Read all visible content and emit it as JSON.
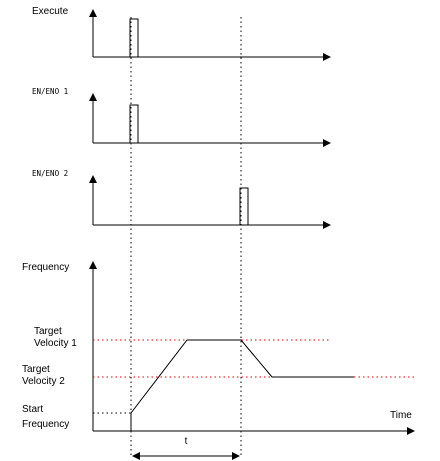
{
  "signals": {
    "execute_label": "Execute",
    "enable1_label": "EN/ENO 1",
    "enable2_label": "EN/ENO 2"
  },
  "profile": {
    "y_axis_label": "Frequency",
    "x_axis_label": "Time",
    "target_velocity_1": [
      "Target",
      "Velocity 1"
    ],
    "target_velocity_2": [
      "Target",
      "Velocity 2"
    ],
    "start_frequency": [
      "Start",
      "Frequency"
    ],
    "duration_label": "t"
  },
  "colors": {
    "guide_red": "#e00000",
    "line": "#000000"
  }
}
